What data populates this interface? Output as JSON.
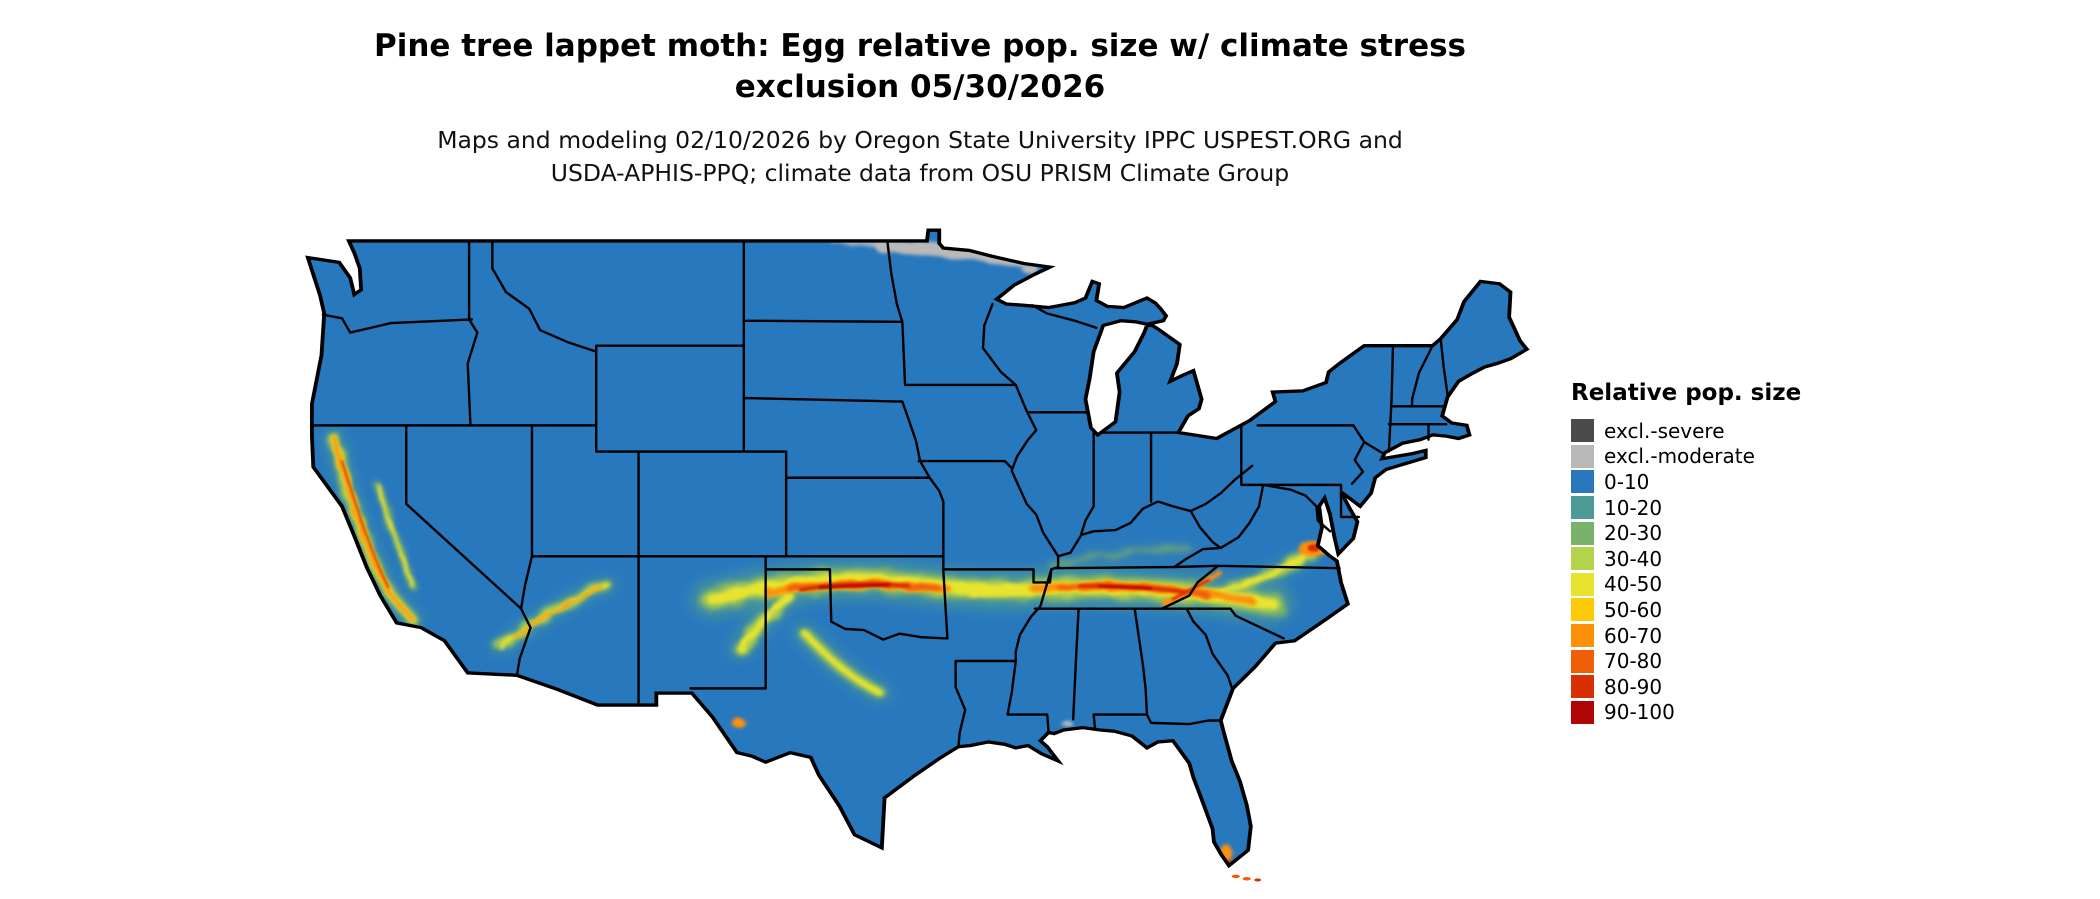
{
  "header": {
    "title_line1": "Pine tree lappet moth: Egg relative pop. size w/ climate stress",
    "title_line2": "exclusion 05/30/2026",
    "subtitle_line1": "Maps and modeling 02/10/2026 by Oregon State University IPPC USPEST.ORG and",
    "subtitle_line2": "USDA-APHIS-PPQ; climate data from OSU PRISM Climate Group"
  },
  "legend": {
    "title": "Relative pop. size",
    "items": [
      {
        "label": "excl.-severe",
        "color": "#4a4a4a"
      },
      {
        "label": "excl.-moderate",
        "color": "#b9b9b9"
      },
      {
        "label": "0-10",
        "color": "#2878be"
      },
      {
        "label": "10-20",
        "color": "#4d9b94"
      },
      {
        "label": "20-30",
        "color": "#7ab16b"
      },
      {
        "label": "30-40",
        "color": "#b5d24d"
      },
      {
        "label": "40-50",
        "color": "#e8e32f"
      },
      {
        "label": "50-60",
        "color": "#fdc908"
      },
      {
        "label": "60-70",
        "color": "#fc9008"
      },
      {
        "label": "70-80",
        "color": "#ee5f07"
      },
      {
        "label": "80-90",
        "color": "#d92f05"
      },
      {
        "label": "90-100",
        "color": "#b00505"
      }
    ]
  },
  "map": {
    "area_label": "Contiguous United States",
    "date_shown": "05/30/2026",
    "background": "#ffffff",
    "border_color": "#000000"
  }
}
